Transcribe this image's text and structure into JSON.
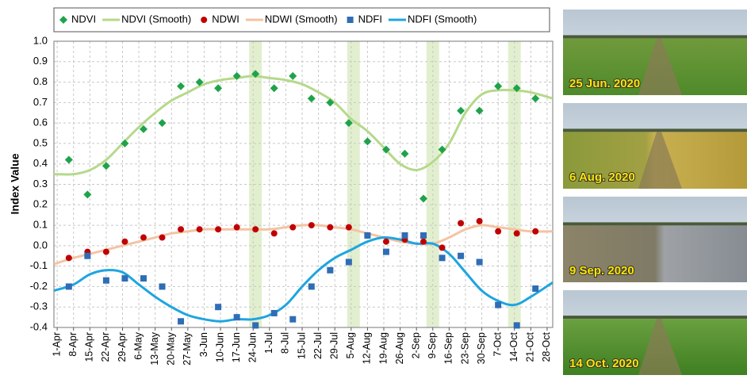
{
  "chart_data": {
    "type": "scatter-line",
    "y_label": "Index Value",
    "xlim": [
      -1.4,
      212.4
    ],
    "xticks": [
      {
        "value": 0,
        "label": "1-Apr"
      },
      {
        "value": 7,
        "label": "8-Apr"
      },
      {
        "value": 14,
        "label": "15-Apr"
      },
      {
        "value": 21,
        "label": "22-Apr"
      },
      {
        "value": 28,
        "label": "29-Apr"
      },
      {
        "value": 35,
        "label": "6-May"
      },
      {
        "value": 42,
        "label": "13-May"
      },
      {
        "value": 49,
        "label": "20-May"
      },
      {
        "value": 56,
        "label": "27-May"
      },
      {
        "value": 63,
        "label": "3-Jun"
      },
      {
        "value": 70,
        "label": "10-Jun"
      },
      {
        "value": 77,
        "label": "17-Jun"
      },
      {
        "value": 84,
        "label": "24-Jun"
      },
      {
        "value": 91,
        "label": "1-Jul"
      },
      {
        "value": 98,
        "label": "8-Jul"
      },
      {
        "value": 105,
        "label": "15-Jul"
      },
      {
        "value": 112,
        "label": "22-Jul"
      },
      {
        "value": 119,
        "label": "29-Jul"
      },
      {
        "value": 126,
        "label": "5-Aug"
      },
      {
        "value": 133,
        "label": "12-Aug"
      },
      {
        "value": 140,
        "label": "19-Aug"
      },
      {
        "value": 147,
        "label": "26-Aug"
      },
      {
        "value": 154,
        "label": "2-Sep"
      },
      {
        "value": 161,
        "label": "9-Sep"
      },
      {
        "value": 168,
        "label": "16-Sep"
      },
      {
        "value": 175,
        "label": "23-Sep"
      },
      {
        "value": 182,
        "label": "30-Sep"
      },
      {
        "value": 189,
        "label": "7-Oct"
      },
      {
        "value": 196,
        "label": "14-Oct"
      },
      {
        "value": 203,
        "label": "21-Oct"
      },
      {
        "value": 210,
        "label": "28-Oct"
      }
    ],
    "ylim": [
      -0.4,
      1.0
    ],
    "yticks": [
      -0.4,
      -0.3,
      -0.2,
      -0.1,
      {
        "value": 0,
        "label": "0.0"
      },
      0.1,
      0.2,
      0.3,
      0.4,
      0.5,
      0.6,
      0.7,
      0.8,
      0.9,
      {
        "value": 1,
        "label": "1.0"
      }
    ],
    "grid": true,
    "highlight_x": [
      85,
      127,
      161,
      196
    ],
    "highlight_color": "#e2efcf",
    "series": [
      {
        "name": "NDVI",
        "style": "diamond",
        "color": "#1fa34a",
        "x": [
          5,
          13,
          21,
          29,
          37,
          45,
          53,
          61,
          69,
          77,
          85,
          93,
          101,
          109,
          117,
          125,
          133,
          141,
          149,
          157,
          165,
          173,
          181,
          189,
          197,
          205
        ],
        "values": [
          0.42,
          0.25,
          0.39,
          0.5,
          0.57,
          0.6,
          0.78,
          0.8,
          0.77,
          0.83,
          0.84,
          0.77,
          0.83,
          0.72,
          0.7,
          0.6,
          0.51,
          0.47,
          0.45,
          0.23,
          0.47,
          0.66,
          0.66,
          0.78,
          0.77,
          0.72
        ]
      },
      {
        "name": "NDVI (Smooth)",
        "style": "line",
        "color": "#b5d98a",
        "x": [
          -1.4,
          7,
          14,
          21,
          28,
          35,
          42,
          49,
          56,
          63,
          70,
          77,
          84,
          91,
          98,
          105,
          112,
          119,
          126,
          133,
          140,
          147,
          154,
          161,
          168,
          175,
          182,
          189,
          196,
          203,
          212.4
        ],
        "values": [
          0.35,
          0.35,
          0.37,
          0.42,
          0.5,
          0.58,
          0.65,
          0.71,
          0.75,
          0.79,
          0.81,
          0.82,
          0.83,
          0.82,
          0.81,
          0.79,
          0.75,
          0.7,
          0.62,
          0.56,
          0.48,
          0.4,
          0.37,
          0.41,
          0.5,
          0.65,
          0.74,
          0.76,
          0.76,
          0.75,
          0.72
        ]
      },
      {
        "name": "NDWI",
        "style": "circle",
        "color": "#c00000",
        "x": [
          5,
          13,
          21,
          29,
          37,
          45,
          53,
          61,
          69,
          77,
          85,
          93,
          101,
          109,
          117,
          125,
          133,
          141,
          149,
          157,
          165,
          173,
          181,
          189,
          197,
          205
        ],
        "values": [
          -0.06,
          -0.03,
          -0.03,
          0.02,
          0.04,
          0.04,
          0.08,
          0.08,
          0.08,
          0.09,
          0.08,
          0.06,
          0.09,
          0.1,
          0.09,
          0.09,
          0.05,
          0.02,
          0.03,
          0.02,
          -0.01,
          0.11,
          0.12,
          0.07,
          0.06,
          0.07
        ]
      },
      {
        "name": "NDWI (Smooth)",
        "style": "line",
        "color": "#f4c3a3",
        "x": [
          -1.4,
          7,
          14,
          21,
          28,
          35,
          42,
          49,
          56,
          63,
          70,
          77,
          84,
          91,
          98,
          105,
          112,
          119,
          126,
          133,
          140,
          147,
          154,
          161,
          168,
          175,
          182,
          189,
          196,
          203,
          212.4
        ],
        "values": [
          -0.09,
          -0.06,
          -0.04,
          -0.02,
          0.0,
          0.02,
          0.04,
          0.06,
          0.07,
          0.08,
          0.08,
          0.08,
          0.08,
          0.08,
          0.09,
          0.1,
          0.1,
          0.09,
          0.08,
          0.06,
          0.04,
          0.02,
          0.01,
          0.01,
          0.04,
          0.08,
          0.1,
          0.09,
          0.08,
          0.07,
          0.07
        ]
      },
      {
        "name": "NDFI",
        "style": "square",
        "color": "#2f6db5",
        "x": [
          5,
          13,
          21,
          29,
          37,
          45,
          53,
          61,
          69,
          77,
          85,
          93,
          101,
          109,
          117,
          125,
          133,
          141,
          149,
          157,
          165,
          173,
          181,
          189,
          197,
          205
        ],
        "values": [
          -0.2,
          -0.05,
          -0.17,
          -0.16,
          -0.16,
          -0.2,
          -0.37,
          null,
          -0.3,
          -0.35,
          -0.39,
          -0.33,
          -0.36,
          -0.2,
          -0.12,
          -0.08,
          0.05,
          -0.03,
          0.05,
          0.05,
          -0.06,
          -0.05,
          -0.08,
          -0.29,
          -0.39,
          -0.21
        ]
      },
      {
        "name": "NDFI (Smooth)",
        "style": "line",
        "color": "#1ea5e0",
        "x": [
          -1.4,
          7,
          14,
          21,
          28,
          35,
          42,
          49,
          56,
          63,
          70,
          77,
          84,
          91,
          98,
          105,
          112,
          119,
          126,
          133,
          140,
          147,
          154,
          161,
          168,
          175,
          182,
          189,
          196,
          203,
          212.4
        ],
        "values": [
          -0.22,
          -0.19,
          -0.14,
          -0.12,
          -0.13,
          -0.19,
          -0.25,
          -0.3,
          -0.34,
          -0.36,
          -0.37,
          -0.36,
          -0.36,
          -0.34,
          -0.29,
          -0.2,
          -0.12,
          -0.06,
          -0.02,
          0.02,
          0.04,
          0.03,
          0.01,
          0.01,
          -0.04,
          -0.13,
          -0.22,
          -0.27,
          -0.29,
          -0.25,
          -0.18
        ]
      }
    ]
  },
  "photos": [
    {
      "caption": "25 Jun. 2020"
    },
    {
      "caption": "6 Aug. 2020"
    },
    {
      "caption": "9 Sep. 2020"
    },
    {
      "caption": "14 Oct. 2020"
    }
  ]
}
